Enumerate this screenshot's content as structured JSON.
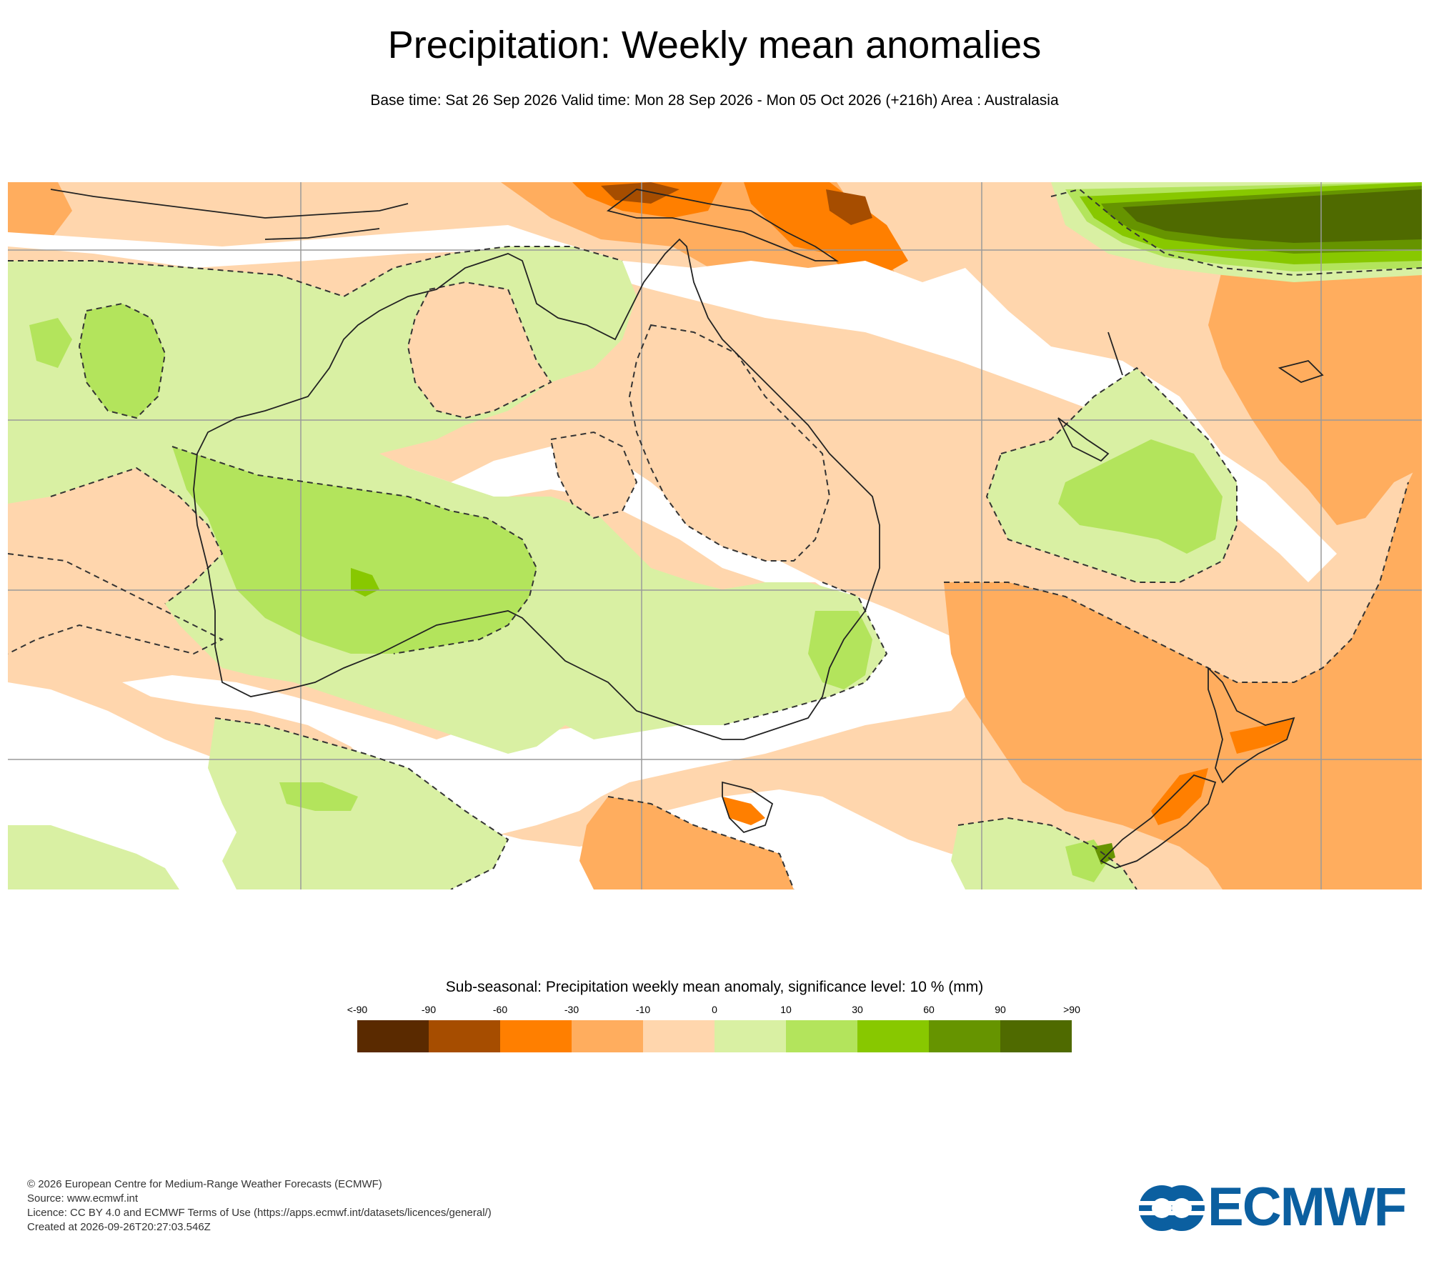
{
  "title": "Precipitation: Weekly mean anomalies",
  "subtitle": "Base time: Sat 26 Sep 2026 Valid time: Mon 28 Sep 2026 - Mon 05 Oct 2026 (+216h) Area : Australasia",
  "map": {
    "area": "Australasia",
    "significance_contour": "dashed"
  },
  "legend": {
    "title": "Sub-seasonal: Precipitation weekly mean anomaly, significance level: 10 % (mm)",
    "labels": [
      "<-90",
      "-90",
      "-60",
      "-30",
      "-10",
      "0",
      "10",
      "30",
      "60",
      "90",
      ">90"
    ],
    "colors": [
      "#5a2a00",
      "#a64d00",
      "#ff7f00",
      "#ffad5e",
      "#ffd6ad",
      "#d9f0a3",
      "#b3e45c",
      "#88c800",
      "#669400",
      "#4f6a00"
    ]
  },
  "footer": {
    "line1": "© 2026 European Centre for Medium-Range Weather Forecasts (ECMWF)",
    "line2": "Source: www.ecmwf.int",
    "line3": "Licence: CC BY 4.0 and ECMWF Terms of Use (https://apps.ecmwf.int/datasets/licences/general/)",
    "line4": "Created at 2026-09-26T20:27:03.546Z"
  },
  "logo": {
    "text": "ECMWF",
    "icon": "ecmwf-logo-icon",
    "color": "#0b5fa0"
  }
}
